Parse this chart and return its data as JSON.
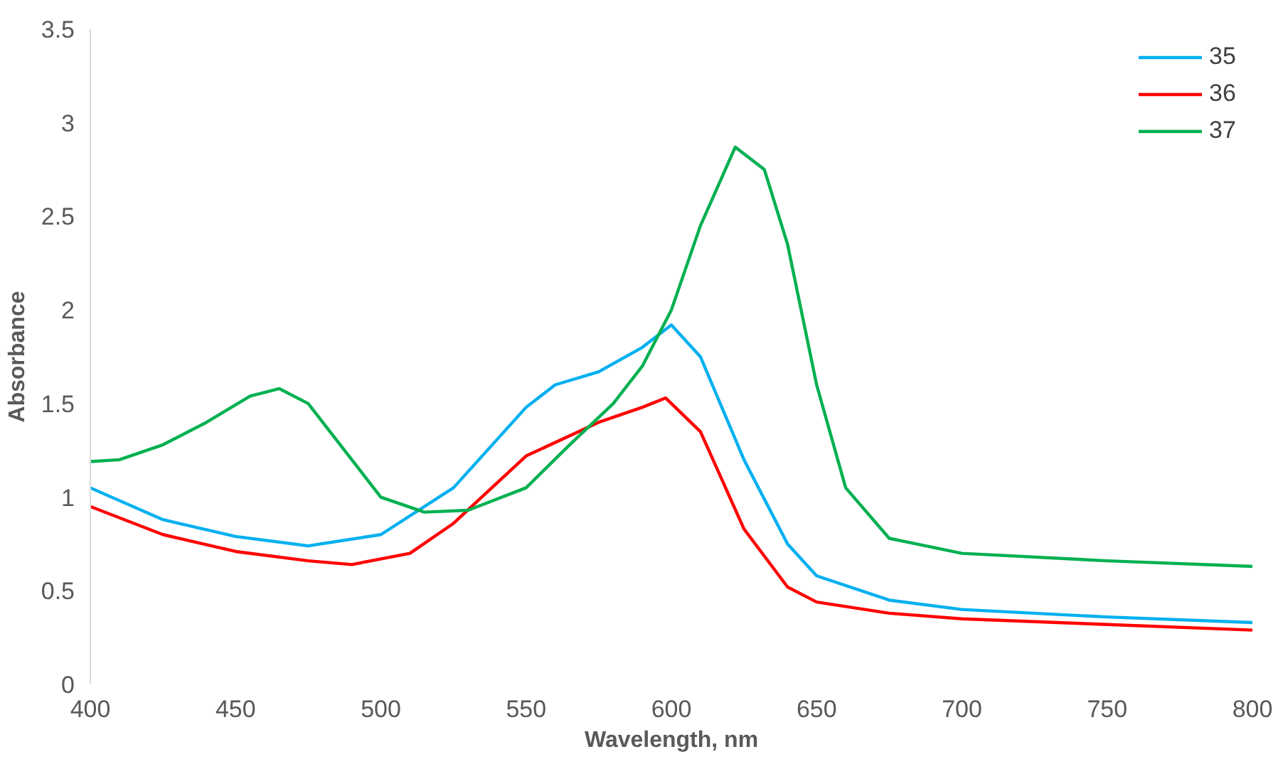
{
  "chart_data": {
    "type": "line",
    "xlabel": "Wavelength, nm",
    "ylabel": "Absorbance",
    "xlim": [
      400,
      800
    ],
    "ylim": [
      0,
      3.5
    ],
    "xticks": [
      400,
      450,
      500,
      550,
      600,
      650,
      700,
      750,
      800
    ],
    "yticks": [
      0,
      0.5,
      1,
      1.5,
      2,
      2.5,
      3,
      3.5
    ],
    "grid": false,
    "legend": "top right",
    "series": [
      {
        "name": "35",
        "color": "#00b0f0",
        "x": [
          400,
          425,
          450,
          475,
          500,
          525,
          550,
          560,
          575,
          590,
          600,
          610,
          625,
          640,
          650,
          675,
          700,
          750,
          800
        ],
        "values": [
          1.05,
          0.88,
          0.79,
          0.74,
          0.8,
          1.05,
          1.48,
          1.6,
          1.67,
          1.8,
          1.92,
          1.75,
          1.2,
          0.75,
          0.58,
          0.45,
          0.4,
          0.36,
          0.33
        ]
      },
      {
        "name": "36",
        "color": "#ff0000",
        "x": [
          400,
          425,
          450,
          475,
          490,
          510,
          525,
          550,
          575,
          590,
          598,
          610,
          625,
          640,
          650,
          675,
          700,
          750,
          800
        ],
        "values": [
          0.95,
          0.8,
          0.71,
          0.66,
          0.64,
          0.7,
          0.86,
          1.22,
          1.4,
          1.48,
          1.53,
          1.35,
          0.83,
          0.52,
          0.44,
          0.38,
          0.35,
          0.32,
          0.29
        ]
      },
      {
        "name": "37",
        "color": "#00b050",
        "x": [
          400,
          410,
          425,
          440,
          455,
          465,
          475,
          490,
          500,
          515,
          530,
          550,
          565,
          580,
          590,
          600,
          610,
          622,
          632,
          640,
          650,
          660,
          675,
          700,
          750,
          800
        ],
        "values": [
          1.19,
          1.2,
          1.28,
          1.4,
          1.54,
          1.58,
          1.5,
          1.2,
          1.0,
          0.92,
          0.93,
          1.05,
          1.28,
          1.5,
          1.7,
          2.0,
          2.45,
          2.87,
          2.75,
          2.35,
          1.6,
          1.05,
          0.78,
          0.7,
          0.66,
          0.63
        ]
      }
    ]
  }
}
